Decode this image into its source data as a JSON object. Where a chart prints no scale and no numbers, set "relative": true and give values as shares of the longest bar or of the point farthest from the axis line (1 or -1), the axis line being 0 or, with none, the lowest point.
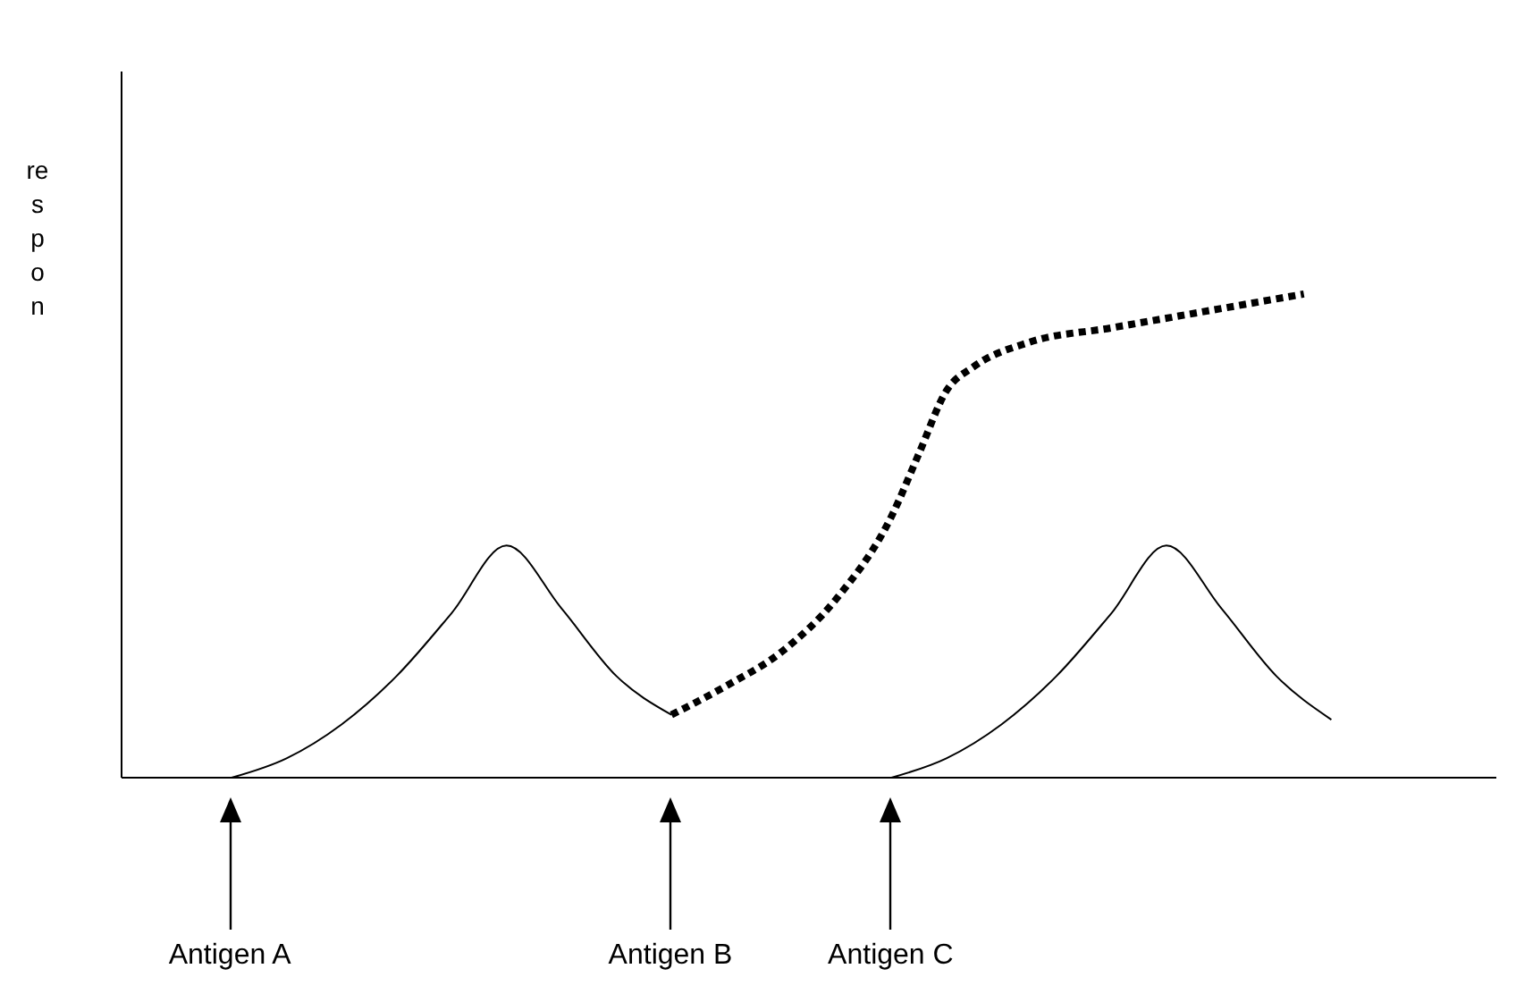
{
  "chart_data": {
    "type": "line",
    "relative": true,
    "ylabel": "respon",
    "categories": [
      null,
      null,
      null,
      null,
      null,
      null,
      null,
      null,
      null,
      null,
      null,
      null,
      null,
      null,
      null,
      null,
      null,
      null,
      null,
      null,
      null,
      null,
      null,
      null,
      null,
      null,
      null,
      null,
      null,
      null,
      null,
      null,
      null,
      null,
      null,
      null,
      null,
      null,
      null,
      null,
      null,
      null,
      null,
      null,
      null,
      null,
      null,
      null,
      null,
      null,
      null
    ],
    "series": [
      {
        "color": "#000000",
        "line_style": "solid",
        "values": [
          null,
          null,
          null,
          null,
          0,
          null,
          0.04,
          null,
          0.11,
          null,
          0.21,
          null,
          0.34,
          null,
          0.48,
          null,
          0.35,
          null,
          0.21,
          null,
          0.13,
          null,
          null,
          null,
          null,
          null,
          null,
          null,
          null,
          null,
          null,
          null,
          null,
          null,
          null,
          null,
          null,
          null,
          null,
          null,
          null,
          null,
          null,
          null,
          null,
          null,
          null,
          null,
          null,
          null,
          null
        ]
      },
      {
        "color": "#000000",
        "line_style": "dotted",
        "values": [
          null,
          null,
          null,
          null,
          null,
          null,
          null,
          null,
          null,
          null,
          null,
          null,
          null,
          null,
          null,
          null,
          null,
          null,
          null,
          null,
          0.13,
          null,
          0.19,
          null,
          0.26,
          null,
          0.37,
          null,
          0.54,
          0.67,
          0.8,
          0.85,
          null,
          0.9,
          null,
          null,
          0.93,
          null,
          null,
          null,
          0.97,
          null,
          null,
          1,
          null,
          null,
          null,
          null,
          null,
          null,
          null
        ]
      },
      {
        "color": "#000000",
        "line_style": "solid",
        "values": [
          null,
          null,
          null,
          null,
          null,
          null,
          null,
          null,
          null,
          null,
          null,
          null,
          null,
          null,
          null,
          null,
          null,
          null,
          null,
          null,
          null,
          null,
          null,
          null,
          null,
          null,
          null,
          null,
          0,
          null,
          0.04,
          null,
          0.11,
          null,
          0.21,
          null,
          0.34,
          null,
          0.48,
          null,
          0.35,
          null,
          0.21,
          null,
          0.12,
          null,
          null,
          null,
          null,
          null,
          null
        ]
      }
    ],
    "annotations": [
      "Antigen A",
      "Antigen B",
      "Antigen C"
    ],
    "grid": false,
    "legend": false,
    "marker": "none"
  }
}
